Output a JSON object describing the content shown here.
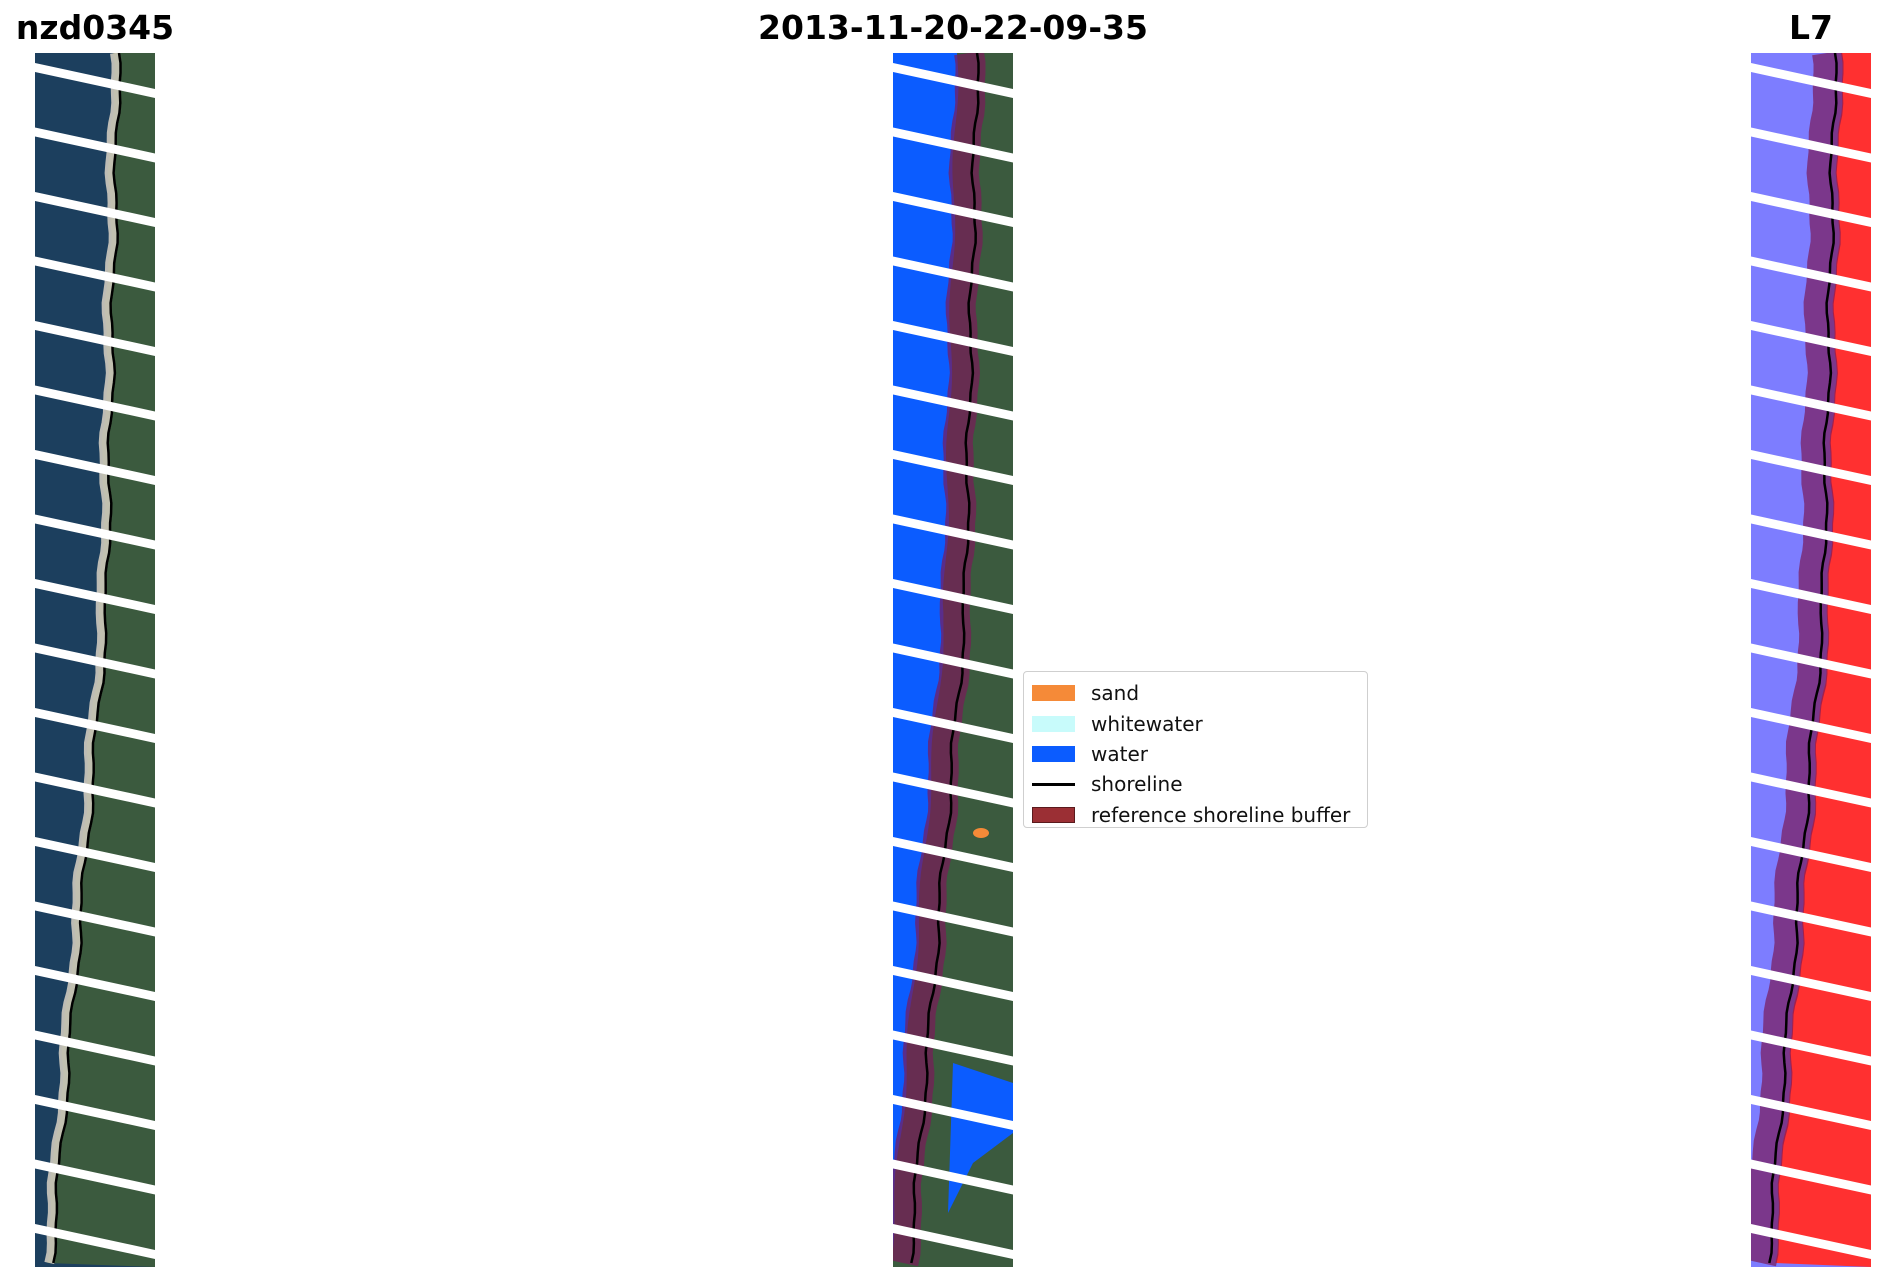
{
  "figure": {
    "left_title": "nzd0345",
    "center_title": "2013-11-20-22-09-35",
    "right_title": "L7"
  },
  "legend": {
    "items": [
      {
        "label": "sand",
        "color": "#f58a38",
        "kind": "patch"
      },
      {
        "label": "whitewater",
        "color": "#c8fbfb",
        "kind": "patch"
      },
      {
        "label": "water",
        "color": "#0b5cff",
        "kind": "patch"
      },
      {
        "label": "shoreline",
        "color": "#000000",
        "kind": "line"
      },
      {
        "label": "reference shoreline buffer",
        "color": "#9b2f34",
        "kind": "patch"
      }
    ]
  },
  "colors": {
    "ocean": "#1c3f5e",
    "land": "#3b5a3e",
    "sand": "#d9d2c4",
    "stripe": "#ffffff",
    "water_class": "#0b5cff",
    "sand_class": "#f58a38",
    "buffer": "#7a1a5a",
    "index_water": "#7d7dff",
    "index_land": "#ff3030"
  }
}
